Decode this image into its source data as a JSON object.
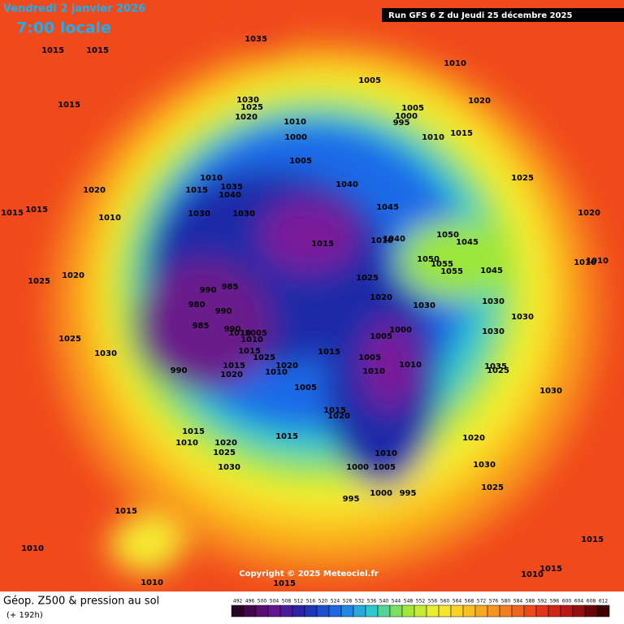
{
  "header": {
    "date": "Vendredi 2 janvier 2026",
    "time": "7:00 locale",
    "run": "Run GFS 6 Z du Jeudi 25 décembre 2025"
  },
  "map": {
    "copyright": "Copyright © 2025 Meteociel.fr",
    "pressure_labels": [
      "1015",
      "1015",
      "1035",
      "1010",
      "1005",
      "1020",
      "1015",
      "1030",
      "1025",
      "1020",
      "1010",
      "1005",
      "1000",
      "995",
      "1010",
      "1015",
      "1000",
      "1005",
      "1025",
      "1010",
      "1015",
      "1035",
      "1040",
      "1040",
      "1020",
      "1015",
      "1015",
      "1010",
      "1030",
      "1030",
      "1045",
      "1020",
      "1050",
      "1045",
      "1015",
      "1010",
      "1040",
      "1050",
      "1055",
      "1055",
      "1045",
      "1010",
      "1010",
      "1025",
      "1020",
      "1025",
      "990",
      "985",
      "980",
      "990",
      "1020",
      "1030",
      "1030",
      "985",
      "990",
      "1010",
      "1005",
      "1030",
      "1000",
      "1005",
      "1030",
      "1025",
      "1010",
      "1015",
      "1025",
      "1015",
      "1005",
      "1030",
      "1010",
      "1020",
      "1010",
      "1035",
      "1025",
      "990",
      "1015",
      "1020",
      "1010",
      "1005",
      "1030",
      "1015",
      "1020",
      "1015",
      "1010",
      "1015",
      "1020",
      "1025",
      "1020",
      "1010",
      "1030",
      "1000",
      "1005",
      "1030",
      "1025",
      "995",
      "1000",
      "995",
      "1015",
      "1015",
      "1010",
      "1015",
      "1010",
      "1010",
      "1015"
    ]
  },
  "footer": {
    "title": "Géop. Z500 & pression au sol",
    "lead": "(+ 192h)",
    "legend_ticks": [
      "492",
      "496",
      "500",
      "504",
      "508",
      "512",
      "516",
      "520",
      "524",
      "528",
      "532",
      "536",
      "540",
      "544",
      "548",
      "552",
      "556",
      "560",
      "564",
      "568",
      "572",
      "576",
      "580",
      "584",
      "588",
      "592",
      "596",
      "600",
      "604",
      "608",
      "612"
    ]
  }
}
